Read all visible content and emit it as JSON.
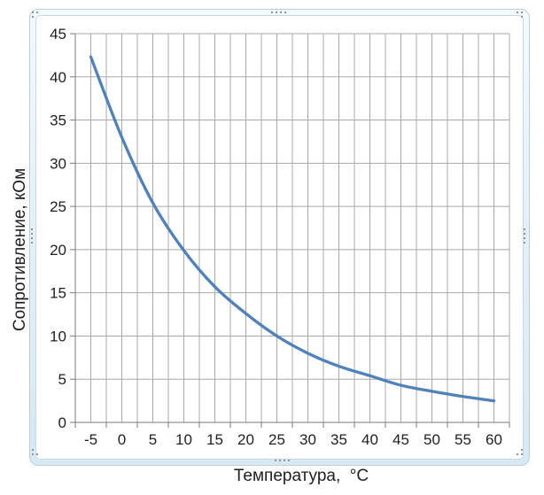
{
  "chart_data": {
    "type": "line",
    "title": "",
    "xlabel": "Температура,  °C",
    "ylabel": "Сопротивление, кОм",
    "categories": [
      -5,
      0,
      5,
      10,
      15,
      20,
      25,
      30,
      35,
      40,
      45,
      50,
      55,
      60
    ],
    "series": [
      {
        "values": [
          42.3,
          33.0,
          25.4,
          19.9,
          15.7,
          12.6,
          10.0,
          8.0,
          6.5,
          5.4,
          4.3,
          3.6,
          3.0,
          2.5
        ]
      }
    ],
    "ylim": [
      0,
      45
    ],
    "y_tick_step": 5,
    "x_tick_step": 5,
    "x_minor_divisions_per_category": 2,
    "grid": true,
    "smoothed": true,
    "legend": "none",
    "line_color": "#4f81bd",
    "grid_color": "#a8a8a8",
    "axis_color": "#7a7a7a",
    "text_color": "#1f1f1f"
  },
  "frame": {
    "state": "selected-chart-object",
    "border_color": "#bcd0dc",
    "fill_color": "#dcecf5",
    "handle_color": "#8a949c"
  }
}
